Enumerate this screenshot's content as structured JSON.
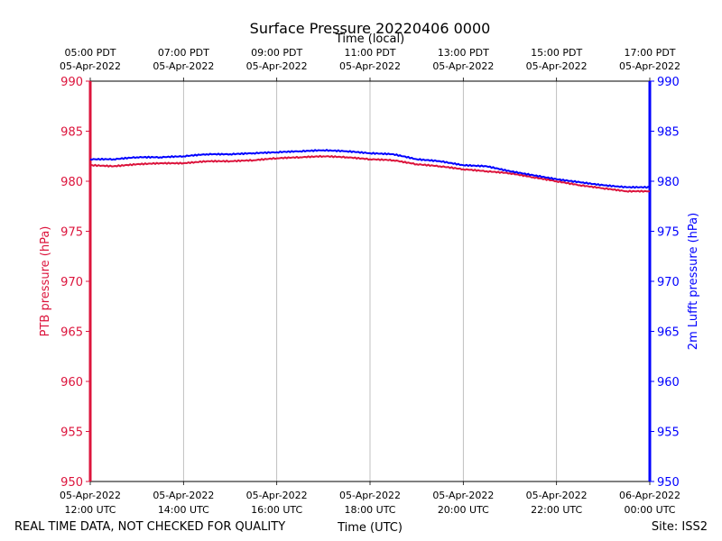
{
  "chart_data": {
    "type": "line",
    "title": "Surface Pressure 20220406 0000",
    "top_xlabel": "Time (local)",
    "xlabel": "Time (UTC)",
    "ylabel_left": "PTB pressure (hPa)",
    "ylabel_right": "2m Lufft pressure (hPa)",
    "ylim": [
      950,
      990
    ],
    "xlim_hours_utc": [
      12,
      24
    ],
    "grid": "vertical",
    "y_ticks": [
      950,
      955,
      960,
      965,
      970,
      975,
      980,
      985,
      990
    ],
    "x_ticks_bottom": [
      {
        "hour": 12,
        "line1": "05-Apr-2022",
        "line2": "12:00 UTC"
      },
      {
        "hour": 14,
        "line1": "05-Apr-2022",
        "line2": "14:00 UTC"
      },
      {
        "hour": 16,
        "line1": "05-Apr-2022",
        "line2": "16:00 UTC"
      },
      {
        "hour": 18,
        "line1": "05-Apr-2022",
        "line2": "18:00 UTC"
      },
      {
        "hour": 20,
        "line1": "05-Apr-2022",
        "line2": "20:00 UTC"
      },
      {
        "hour": 22,
        "line1": "05-Apr-2022",
        "line2": "22:00 UTC"
      },
      {
        "hour": 24,
        "line1": "06-Apr-2022",
        "line2": "00:00 UTC"
      }
    ],
    "x_ticks_top": [
      {
        "hour": 12,
        "line1": "05:00 PDT",
        "line2": "05-Apr-2022"
      },
      {
        "hour": 14,
        "line1": "07:00 PDT",
        "line2": "05-Apr-2022"
      },
      {
        "hour": 16,
        "line1": "09:00 PDT",
        "line2": "05-Apr-2022"
      },
      {
        "hour": 18,
        "line1": "11:00 PDT",
        "line2": "05-Apr-2022"
      },
      {
        "hour": 20,
        "line1": "13:00 PDT",
        "line2": "05-Apr-2022"
      },
      {
        "hour": 22,
        "line1": "15:00 PDT",
        "line2": "05-Apr-2022"
      },
      {
        "hour": 24,
        "line1": "17:00 PDT",
        "line2": "05-Apr-2022"
      }
    ],
    "series": [
      {
        "name": "PTB pressure (hPa)",
        "axis": "left",
        "color": "#dc143c",
        "x": [
          12.0,
          12.5,
          13.0,
          13.5,
          14.0,
          14.5,
          15.0,
          15.5,
          16.0,
          16.5,
          17.0,
          17.5,
          18.0,
          18.5,
          19.0,
          19.5,
          20.0,
          20.5,
          21.0,
          21.5,
          22.0,
          22.5,
          23.0,
          23.5,
          24.0
        ],
        "y": [
          981.6,
          981.5,
          981.7,
          981.8,
          981.8,
          982.0,
          982.0,
          982.1,
          982.3,
          982.4,
          982.5,
          982.4,
          982.2,
          982.1,
          981.7,
          981.5,
          981.2,
          981.0,
          980.8,
          980.4,
          980.0,
          979.6,
          979.3,
          979.0,
          979.0
        ]
      },
      {
        "name": "2m Lufft pressure (hPa)",
        "axis": "right",
        "color": "#0000ff",
        "x": [
          12.0,
          12.5,
          13.0,
          13.5,
          14.0,
          14.5,
          15.0,
          15.5,
          16.0,
          16.5,
          17.0,
          17.5,
          18.0,
          18.5,
          19.0,
          19.5,
          20.0,
          20.5,
          21.0,
          21.5,
          22.0,
          22.5,
          23.0,
          23.5,
          24.0
        ],
        "y": [
          982.2,
          982.2,
          982.4,
          982.4,
          982.5,
          982.7,
          982.7,
          982.8,
          982.9,
          983.0,
          983.1,
          983.0,
          982.8,
          982.7,
          982.2,
          982.0,
          981.6,
          981.5,
          981.0,
          980.6,
          980.2,
          979.9,
          979.6,
          979.4,
          979.4
        ]
      }
    ],
    "footer_left": "REAL TIME DATA, NOT CHECKED FOR QUALITY",
    "footer_right": "Site: ISS2"
  }
}
